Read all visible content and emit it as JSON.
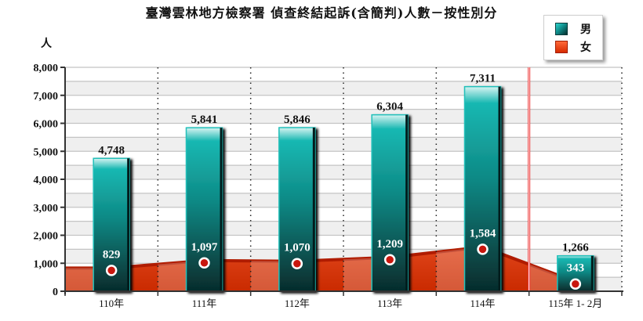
{
  "title": "臺灣雲林地方檢察署 偵查終結起訴(含簡判)人數－按性別分",
  "y_unit": "人",
  "legend": [
    {
      "label": "男",
      "color": "#109a96",
      "icon": "teal-gradient-square-icon"
    },
    {
      "label": "女",
      "color": "#d7340a",
      "icon": "red-square-icon"
    }
  ],
  "chart_data": {
    "type": "bar",
    "title": "臺灣雲林地方檢察署 偵查終結起訴(含簡判)人數－按性別分",
    "xlabel": "",
    "ylabel": "人",
    "ylim": [
      0,
      8000
    ],
    "y_ticks": [
      "0",
      "1,000",
      "2,000",
      "3,000",
      "4,000",
      "5,000",
      "6,000",
      "7,000",
      "8,000"
    ],
    "grid": true,
    "legend_position": "top-right",
    "categories": [
      "110年",
      "111年",
      "112年",
      "113年",
      "114年",
      "115年 1- 2月"
    ],
    "series": [
      {
        "name": "男",
        "type": "bar",
        "values": [
          4748,
          5841,
          5846,
          6304,
          7311,
          1266
        ],
        "labels": [
          "4,748",
          "5,841",
          "5,846",
          "6,304",
          "7,311",
          "1,266"
        ]
      },
      {
        "name": "女",
        "type": "area",
        "values": [
          829,
          1097,
          1070,
          1209,
          1584,
          343
        ],
        "labels": [
          "829",
          "1,097",
          "1,070",
          "1,209",
          "1,584",
          "343"
        ]
      }
    ],
    "annotations": [
      "vertical red separator line between 114年 and 115年 1- 2月"
    ]
  }
}
